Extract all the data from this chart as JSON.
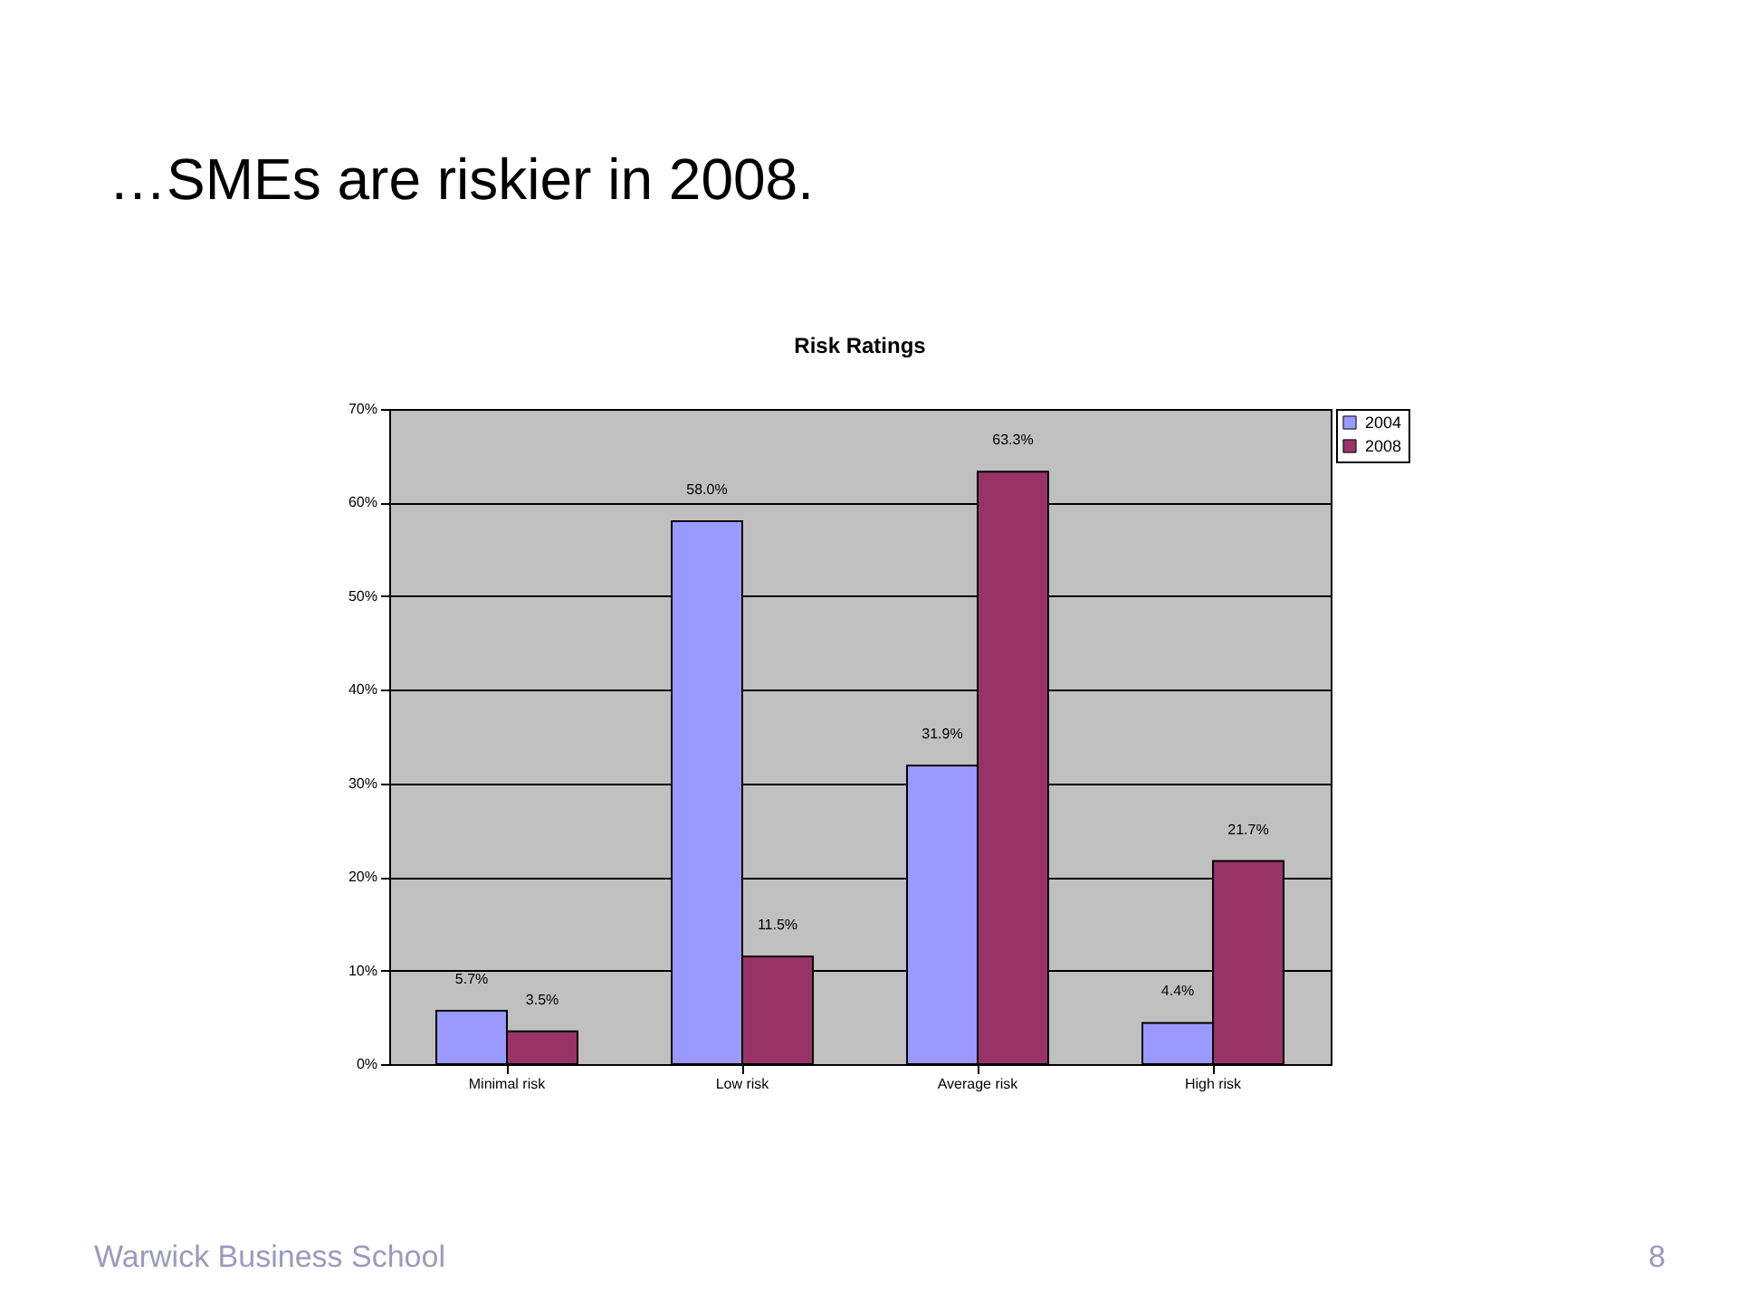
{
  "chart_data": {
    "type": "bar",
    "title": "…SMEs are riskier in 2008.",
    "subtitle": "Risk Ratings",
    "categories": [
      "Minimal risk",
      "Low risk",
      "Average risk",
      "High risk"
    ],
    "series": [
      {
        "name": "2004",
        "color": "#9999ff",
        "values": [
          5.7,
          58.0,
          31.9,
          4.4
        ],
        "value_labels": [
          "5.7%",
          "58.0%",
          "31.9%",
          "4.4%"
        ]
      },
      {
        "name": "2008",
        "color": "#993366",
        "values": [
          3.5,
          11.5,
          63.3,
          21.7
        ],
        "value_labels": [
          "3.5%",
          "11.5%",
          "63.3%",
          "21.7%"
        ]
      }
    ],
    "ylim": [
      0,
      70
    ],
    "yticks": [
      {
        "value": 0,
        "label": "0%"
      },
      {
        "value": 10,
        "label": "10%"
      },
      {
        "value": 20,
        "label": "20%"
      },
      {
        "value": 30,
        "label": "30%"
      },
      {
        "value": 40,
        "label": "40%"
      },
      {
        "value": 50,
        "label": "50%"
      },
      {
        "value": 60,
        "label": "60%"
      },
      {
        "value": 70,
        "label": "70%"
      }
    ],
    "grid": "y",
    "legend": "right",
    "annotations": [
      "Warwick Business School",
      "8"
    ]
  }
}
